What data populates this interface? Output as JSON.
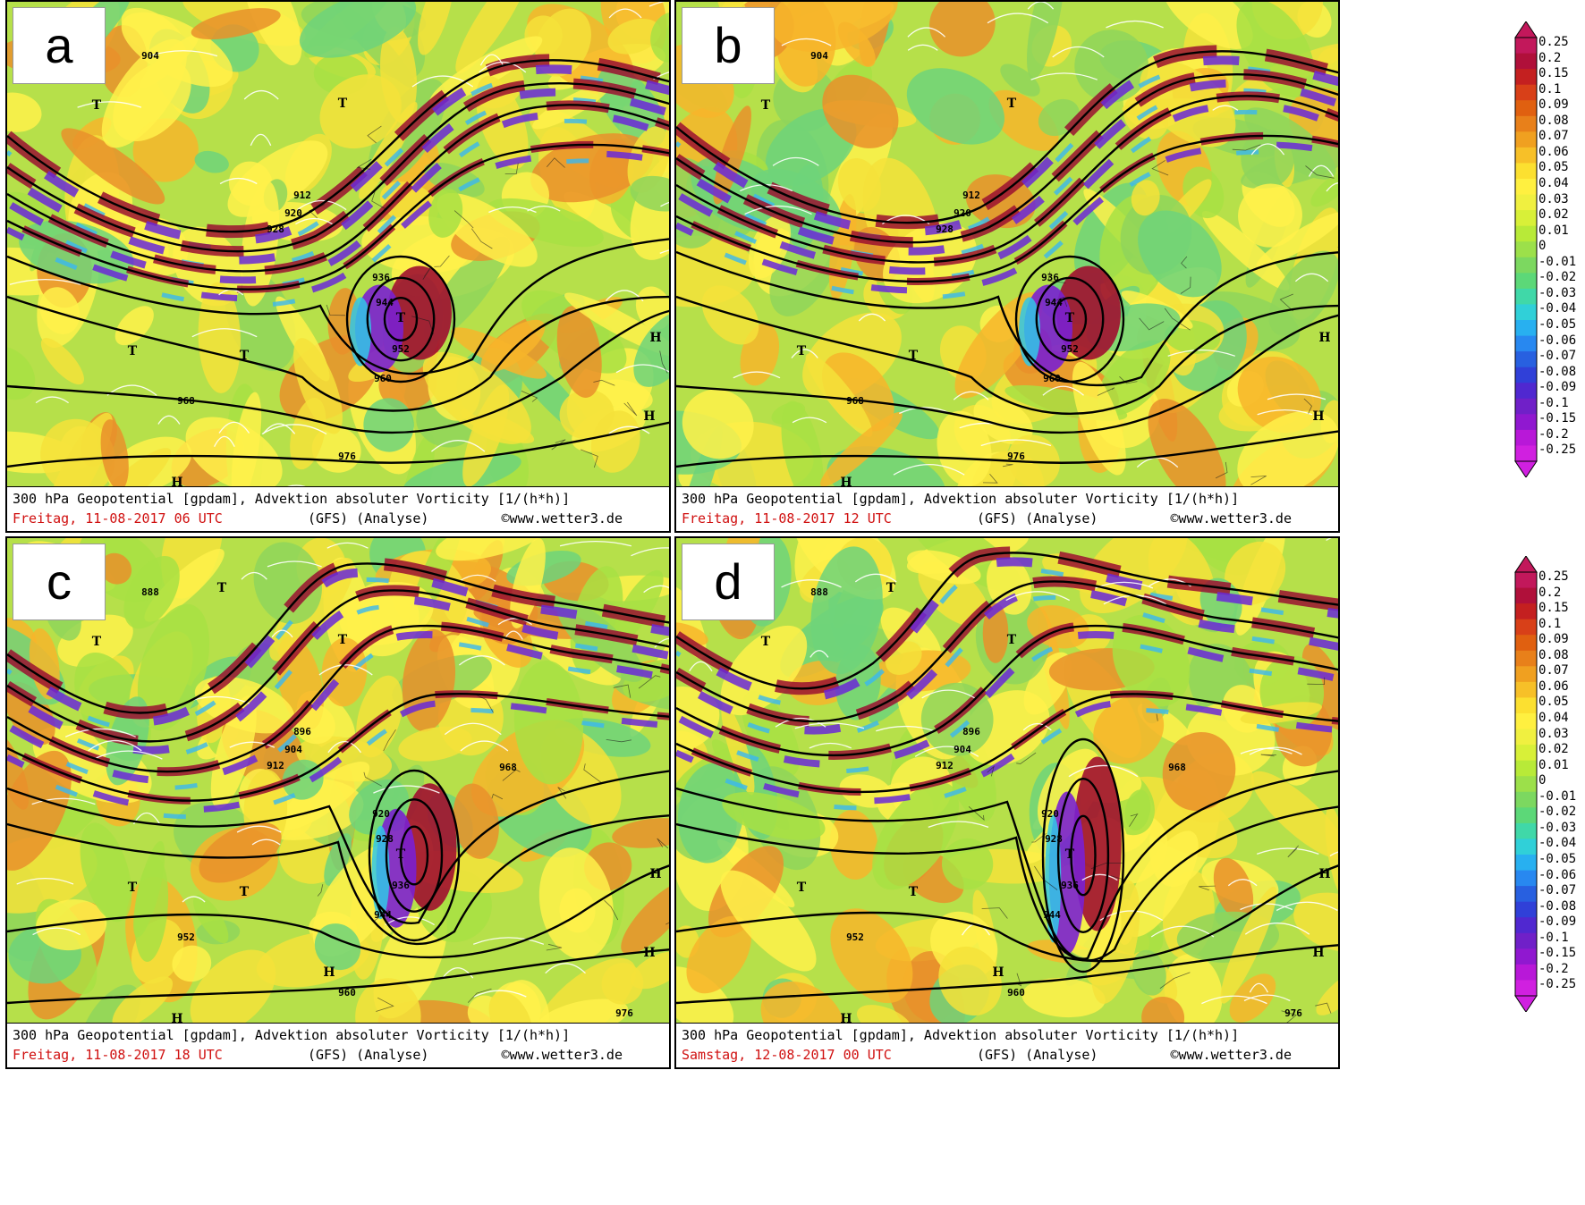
{
  "panels": [
    {
      "letter": "a",
      "title": "300 hPa Geopotential [gpdam], Advektion absoluter Vorticity [1/(h*h)]",
      "date": "Freitag, 11-08-2017  06 UTC",
      "model": "(GFS)  (Analyse)",
      "credit": "©www.wetter3.de",
      "contour_labels": [
        "904",
        "912",
        "920",
        "928",
        "936",
        "944",
        "952",
        "960",
        "968",
        "976"
      ],
      "lows": [
        "T",
        "T",
        "T",
        "T",
        "T"
      ],
      "highs": [
        "H",
        "H",
        "H"
      ]
    },
    {
      "letter": "b",
      "title": "300 hPa Geopotential [gpdam], Advektion absoluter Vorticity [1/(h*h)]",
      "date": "Freitag, 11-08-2017  12 UTC",
      "model": "(GFS)  (Analyse)",
      "credit": "©www.wetter3.de",
      "contour_labels": [
        "904",
        "912",
        "920",
        "928",
        "936",
        "944",
        "952",
        "960",
        "968",
        "976"
      ],
      "lows": [
        "T",
        "T",
        "T",
        "T",
        "T"
      ],
      "highs": [
        "H",
        "H",
        "H"
      ]
    },
    {
      "letter": "c",
      "title": "300 hPa Geopotential [gpdam], Advektion absoluter Vorticity [1/(h*h)]",
      "date": "Freitag, 11-08-2017  18 UTC",
      "model": "(GFS)  (Analyse)",
      "credit": "©www.wetter3.de",
      "contour_labels": [
        "888",
        "896",
        "904",
        "912",
        "920",
        "928",
        "936",
        "944",
        "952",
        "960",
        "968",
        "976"
      ],
      "lows": [
        "T",
        "T",
        "T",
        "T",
        "T",
        "T"
      ],
      "highs": [
        "H",
        "H",
        "H",
        "H"
      ]
    },
    {
      "letter": "d",
      "title": "300 hPa Geopotential [gpdam], Advektion absoluter Vorticity [1/(h*h)]",
      "date": "Samstag, 12-08-2017  00 UTC",
      "model": "(GFS)  (Analyse)",
      "credit": "©www.wetter3.de",
      "contour_labels": [
        "888",
        "896",
        "904",
        "912",
        "920",
        "928",
        "936",
        "944",
        "952",
        "960",
        "968",
        "976"
      ],
      "lows": [
        "T",
        "T",
        "T",
        "T",
        "T",
        "T"
      ],
      "highs": [
        "H",
        "H",
        "H",
        "H"
      ]
    }
  ],
  "colorbar": {
    "labels": [
      "0.25",
      "0.2",
      "0.15",
      "0.1",
      "0.09",
      "0.08",
      "0.07",
      "0.06",
      "0.05",
      "0.04",
      "0.03",
      "0.02",
      "0.01",
      "0",
      "-0.01",
      "-0.02",
      "-0.03",
      "-0.04",
      "-0.05",
      "-0.06",
      "-0.07",
      "-0.08",
      "-0.09",
      "-0.1",
      "-0.15",
      "-0.2",
      "-0.25"
    ],
    "colors": [
      "#c2185b",
      "#b0103a",
      "#c42020",
      "#d84018",
      "#e06010",
      "#e8801a",
      "#f0a020",
      "#f7c028",
      "#fce030",
      "#fff040",
      "#f0f040",
      "#d8f038",
      "#b8ea38",
      "#9ce04a",
      "#7cd860",
      "#5cd878",
      "#40d8a8",
      "#30d0d8",
      "#28b0f0",
      "#2888f0",
      "#2860e0",
      "#3040d8",
      "#5028d0",
      "#7020c8",
      "#9018d0",
      "#b818d8",
      "#d020e0"
    ],
    "arrow_top": "#c2185b",
    "arrow_bottom": "#d020e0"
  }
}
